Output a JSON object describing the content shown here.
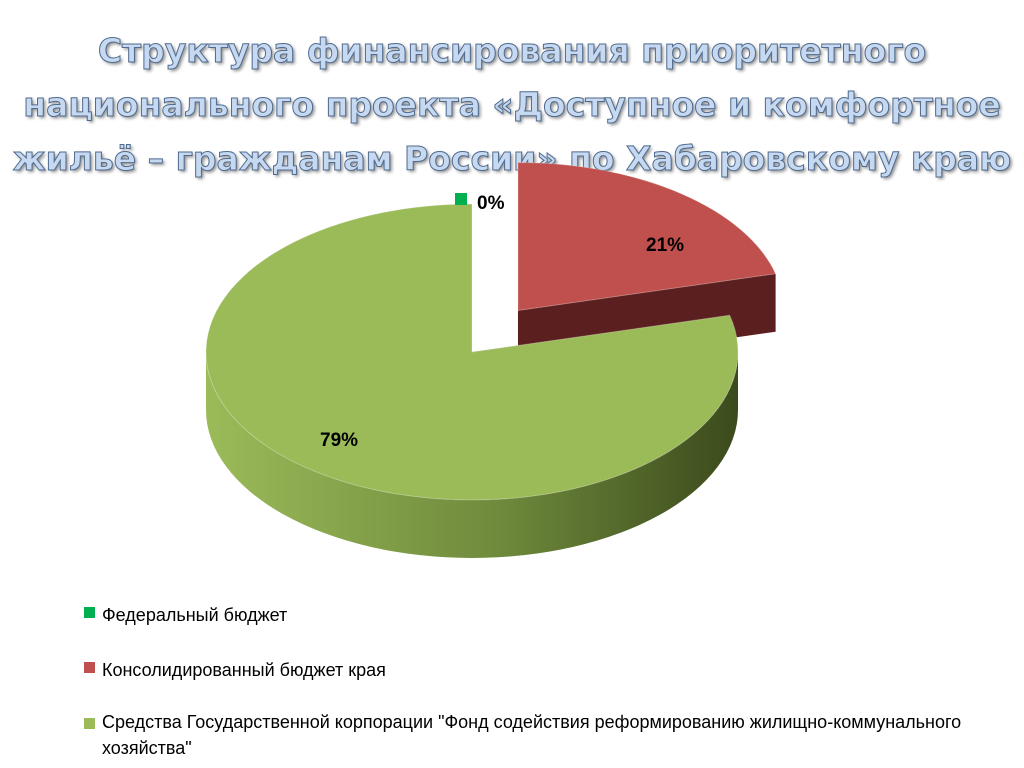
{
  "slide": {
    "title_lines": [
      "Структура финансирования приоритетного",
      "национального проекта «Доступное и комфортное",
      "жильё – гражданам России» по Хабаровскому краю"
    ]
  },
  "chart_data": {
    "type": "pie",
    "title": "Структура финансирования приоритетного национального проекта «Доступное и комфортное жильё – гражданам России» по Хабаровскому краю",
    "categories": [
      "Федеральный бюджет",
      "Консолидированный бюджет края",
      "Средства Государственной корпорации \"Фонд содействия реформированию жилищно-коммунального хозяйства\""
    ],
    "values": [
      0,
      21,
      79
    ],
    "data_labels": [
      "0%",
      "21%",
      "79%"
    ],
    "colors": [
      "#00b050",
      "#c0504d",
      "#9bbb59"
    ],
    "side_colors": [
      "#006b30",
      "#5a1f1e",
      "#4b5e24"
    ],
    "legend_position": "bottom",
    "three_d": true,
    "exploded": true
  }
}
